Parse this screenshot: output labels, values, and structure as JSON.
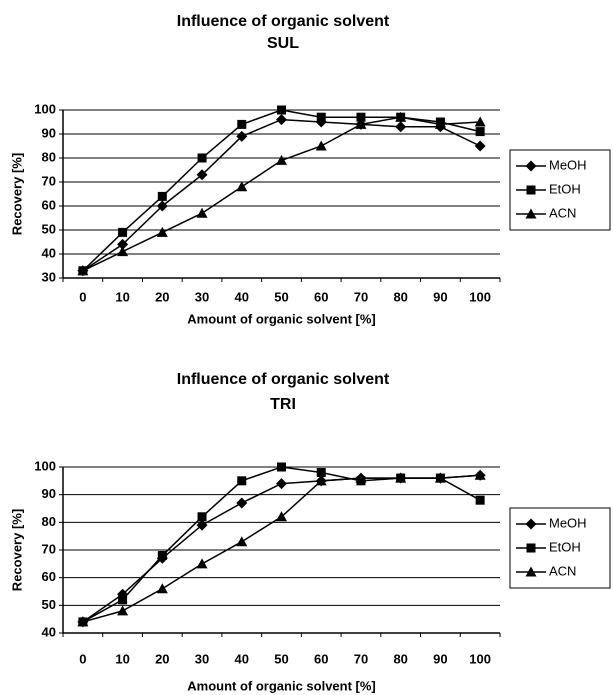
{
  "chart_data": [
    {
      "type": "line",
      "title": "Influence of organic solvent",
      "subtitle": "SUL",
      "x_label": "Amount of organic solvent [%]",
      "y_label": "Recovery [%]",
      "categories": [
        0,
        10,
        20,
        30,
        40,
        50,
        60,
        70,
        80,
        90,
        100
      ],
      "ylim": [
        30,
        100
      ],
      "yticks": [
        30,
        40,
        50,
        60,
        70,
        80,
        90,
        100
      ],
      "grid": true,
      "legend": "right",
      "series": [
        {
          "name": "MeOH",
          "color": "#000000",
          "marker": "diamond",
          "values": [
            33,
            44,
            60,
            73,
            89,
            96,
            95,
            94,
            93,
            93,
            85
          ]
        },
        {
          "name": "EtOH",
          "color": "#000000",
          "marker": "square",
          "values": [
            33,
            49,
            64,
            80,
            94,
            100,
            97,
            97,
            97,
            95,
            91
          ]
        },
        {
          "name": "ACN",
          "color": "#000000",
          "marker": "triangle",
          "values": [
            33,
            41,
            49,
            57,
            68,
            79,
            85,
            94,
            97,
            94,
            95
          ]
        }
      ]
    },
    {
      "type": "line",
      "title": "Influence of organic solvent",
      "subtitle": "TRI",
      "x_label": "Amount of organic solvent [%]",
      "y_label": "Recovery [%]",
      "categories": [
        0,
        10,
        20,
        30,
        40,
        50,
        60,
        70,
        80,
        90,
        100
      ],
      "ylim": [
        40,
        100
      ],
      "yticks": [
        40,
        50,
        60,
        70,
        80,
        90,
        100
      ],
      "grid": true,
      "legend": "right",
      "series": [
        {
          "name": "MeOH",
          "color": "#000000",
          "marker": "diamond",
          "values": [
            44,
            54,
            67,
            79,
            87,
            94,
            95,
            96,
            96,
            96,
            97
          ]
        },
        {
          "name": "EtOH",
          "color": "#000000",
          "marker": "square",
          "values": [
            44,
            52,
            68,
            82,
            95,
            100,
            98,
            95,
            96,
            96,
            88
          ]
        },
        {
          "name": "ACN",
          "color": "#000000",
          "marker": "triangle",
          "values": [
            44,
            48,
            56,
            65,
            73,
            82,
            95,
            96,
            96,
            96,
            97
          ]
        }
      ]
    }
  ]
}
